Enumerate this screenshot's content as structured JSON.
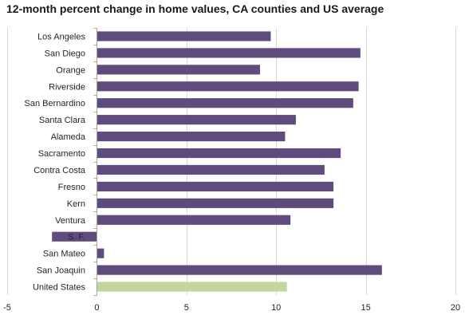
{
  "chart_data": {
    "type": "bar",
    "orientation": "horizontal",
    "title": "12-month percent change in home values, CA counties and US average",
    "categories": [
      "Los Angeles",
      "San Diego",
      "Orange",
      "Riverside",
      "San Bernardino",
      "Santa Clara",
      "Alameda",
      "Sacramento",
      "Contra Costa",
      "Fresno",
      "Kern",
      "Ventura",
      "S. F.",
      "San Mateo",
      "San Joaquin",
      "United States"
    ],
    "values": [
      9.7,
      14.7,
      9.1,
      14.6,
      14.3,
      11.1,
      10.5,
      13.6,
      12.7,
      13.2,
      13.2,
      10.8,
      -2.5,
      0.4,
      15.9,
      10.6
    ],
    "xlim": [
      -5,
      20
    ],
    "xticks": [
      -5,
      0,
      5,
      10,
      15,
      20
    ],
    "grid": "vertical",
    "legend": "none",
    "colors": {
      "bar": "#5f4b7d",
      "highlight": "#c3d69b",
      "grid": "#d9d9d9",
      "axis": "#a6a6a6"
    },
    "highlight_category": "United States"
  }
}
